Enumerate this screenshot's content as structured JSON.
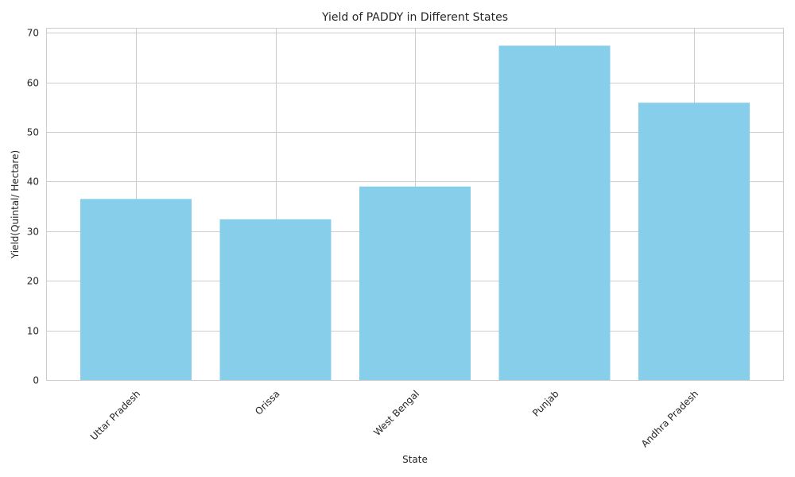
{
  "chart_data": {
    "type": "bar",
    "title": "Yield of PADDY in Different States",
    "xlabel": "State",
    "ylabel": "Yield(Quintal/ Hectare)",
    "categories": [
      "Uttar Pradesh",
      "Orissa",
      "West Bengal",
      "Punjab",
      "Andhra Pradesh"
    ],
    "values": [
      36.5,
      32.4,
      39.0,
      67.4,
      55.9
    ],
    "ylim": [
      0,
      71
    ],
    "yticks": [
      0,
      10,
      20,
      30,
      40,
      50,
      60,
      70
    ],
    "grid": true,
    "bar_color": "#87ceeb"
  }
}
